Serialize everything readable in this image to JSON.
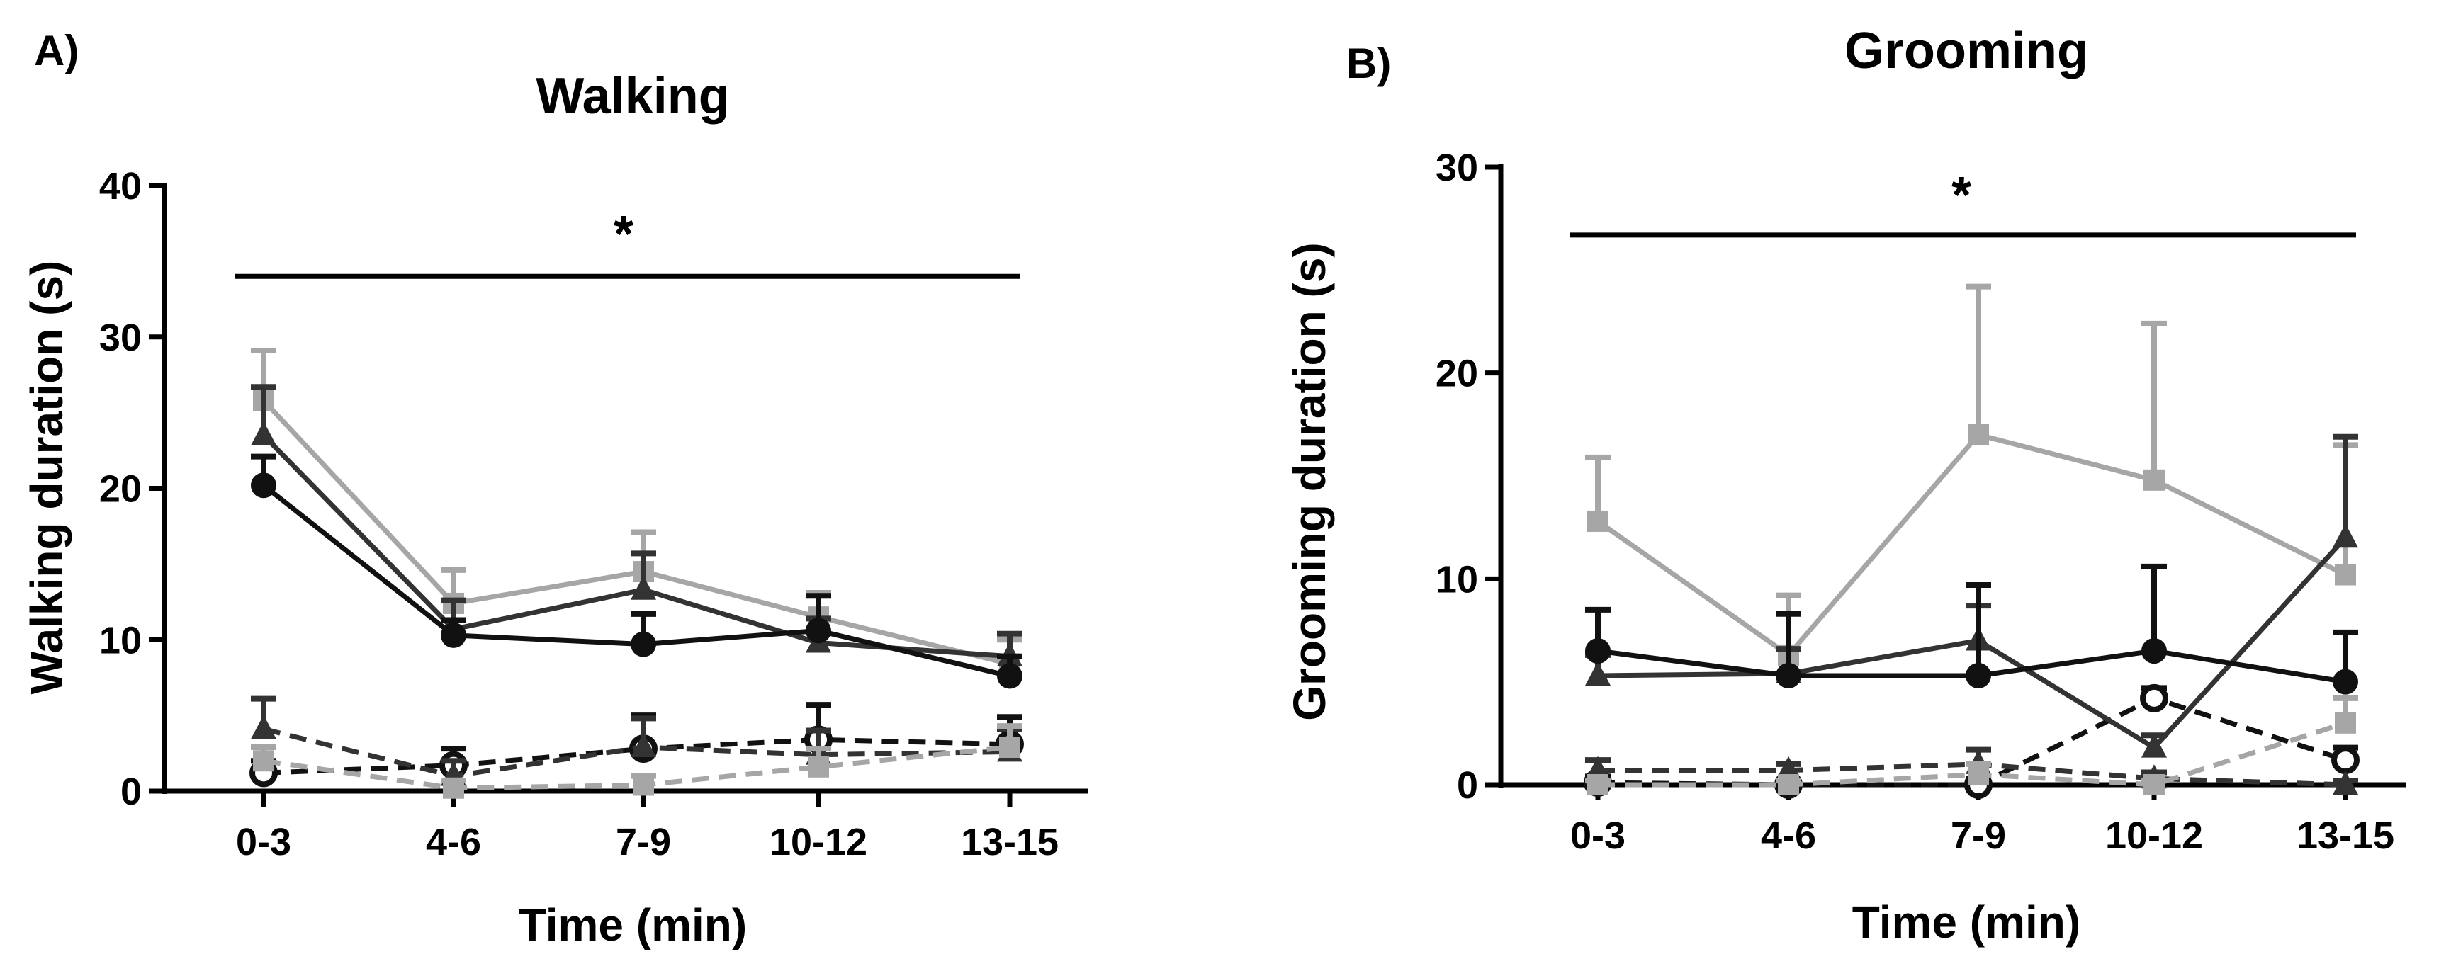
{
  "colors": {
    "black": "#111111",
    "dark_gray": "#333333",
    "light_gray": "#a6a6a6",
    "background": "#ffffff"
  },
  "chart_data": [
    {
      "panel_label": "A)",
      "type": "line",
      "title": "Walking",
      "xlabel": "Time (min)",
      "ylabel": "Walking duration (s)",
      "categories": [
        "0-3",
        "4-6",
        "7-9",
        "10-12",
        "13-15"
      ],
      "ylim": [
        0,
        40
      ],
      "yticks": [
        "0",
        "10",
        "20",
        "30",
        "40"
      ],
      "significance": {
        "label": "*",
        "from_category": "0-3",
        "to_category": "13-15",
        "y": 34
      },
      "series": [
        {
          "name": "light-gray-square-solid",
          "color": "#a6a6a6",
          "marker": "square",
          "dash": "solid",
          "values": [
            25.8,
            12.4,
            14.5,
            11.5,
            8.4
          ],
          "errors": [
            3.3,
            2.2,
            2.6,
            1.6,
            1.6
          ]
        },
        {
          "name": "dark-gray-triangle-solid",
          "color": "#333333",
          "marker": "triangle",
          "dash": "solid",
          "values": [
            23.5,
            10.7,
            13.3,
            9.8,
            8.9
          ],
          "errors": [
            3.2,
            1.9,
            2.4,
            1.6,
            1.5
          ]
        },
        {
          "name": "black-circle-solid",
          "color": "#111111",
          "marker": "filled-circle",
          "dash": "solid",
          "values": [
            20.2,
            10.3,
            9.7,
            10.6,
            7.6
          ],
          "errors": [
            1.9,
            1.0,
            2.0,
            2.3,
            1.3
          ]
        },
        {
          "name": "black-open-circle-dashed",
          "color": "#111111",
          "marker": "open-circle",
          "dash": "dashed",
          "values": [
            1.2,
            1.7,
            2.8,
            3.4,
            3.1
          ],
          "errors": [
            0.8,
            1.1,
            2.2,
            2.3,
            1.8
          ]
        },
        {
          "name": "dark-gray-triangle-dashed",
          "color": "#333333",
          "marker": "triangle",
          "dash": "dashed",
          "values": [
            4.1,
            1.0,
            2.9,
            2.4,
            2.6
          ],
          "errors": [
            2.0,
            1.0,
            1.9,
            1.6,
            1.5
          ]
        },
        {
          "name": "light-gray-square-dashed",
          "color": "#a6a6a6",
          "marker": "square",
          "dash": "dashed",
          "values": [
            2.0,
            0.2,
            0.4,
            1.6,
            2.9
          ],
          "errors": [
            0.9,
            0.5,
            0.6,
            1.2,
            1.4
          ]
        }
      ]
    },
    {
      "panel_label": "B)",
      "type": "line",
      "title": "Grooming",
      "xlabel": "Time (min)",
      "ylabel": "Grooming duration (s)",
      "categories": [
        "0-3",
        "4-6",
        "7-9",
        "10-12",
        "13-15"
      ],
      "ylim": [
        0,
        30
      ],
      "yticks": [
        "0",
        "10",
        "20",
        "30"
      ],
      "significance": {
        "label": "*",
        "from_category": "0-3",
        "to_category": "13-15",
        "y": 26.7
      },
      "series": [
        {
          "name": "light-gray-square-solid",
          "color": "#a6a6a6",
          "marker": "square",
          "dash": "solid",
          "values": [
            12.8,
            6.3,
            17.0,
            14.8,
            10.2
          ],
          "errors": [
            3.1,
            2.9,
            7.2,
            7.6,
            6.3
          ]
        },
        {
          "name": "dark-gray-triangle-solid",
          "color": "#333333",
          "marker": "triangle",
          "dash": "solid",
          "values": [
            5.3,
            5.4,
            7.0,
            1.8,
            12.0
          ],
          "errors": [
            1.0,
            1.2,
            1.7,
            0.6,
            4.9
          ]
        },
        {
          "name": "black-circle-solid",
          "color": "#111111",
          "marker": "filled-circle",
          "dash": "solid",
          "values": [
            6.5,
            5.3,
            5.3,
            6.5,
            5.0
          ],
          "errors": [
            2.0,
            3.0,
            4.4,
            4.1,
            2.4
          ]
        },
        {
          "name": "black-open-circle-dashed",
          "color": "#111111",
          "marker": "open-circle",
          "dash": "dashed",
          "values": [
            0.1,
            0.0,
            0.0,
            4.2,
            1.2
          ],
          "errors": [
            0.3,
            0.2,
            0.3,
            0.5,
            0.6
          ]
        },
        {
          "name": "dark-gray-triangle-dashed",
          "color": "#333333",
          "marker": "triangle",
          "dash": "dashed",
          "values": [
            0.7,
            0.7,
            1.0,
            0.3,
            0.0
          ],
          "errors": [
            0.5,
            0.3,
            0.7,
            0.3,
            0.2
          ]
        },
        {
          "name": "light-gray-square-dashed",
          "color": "#a6a6a6",
          "marker": "square",
          "dash": "dashed",
          "values": [
            0.0,
            0.0,
            0.5,
            0.0,
            3.0
          ],
          "errors": [
            0.2,
            0.2,
            0.5,
            0.2,
            1.2
          ]
        }
      ]
    }
  ]
}
